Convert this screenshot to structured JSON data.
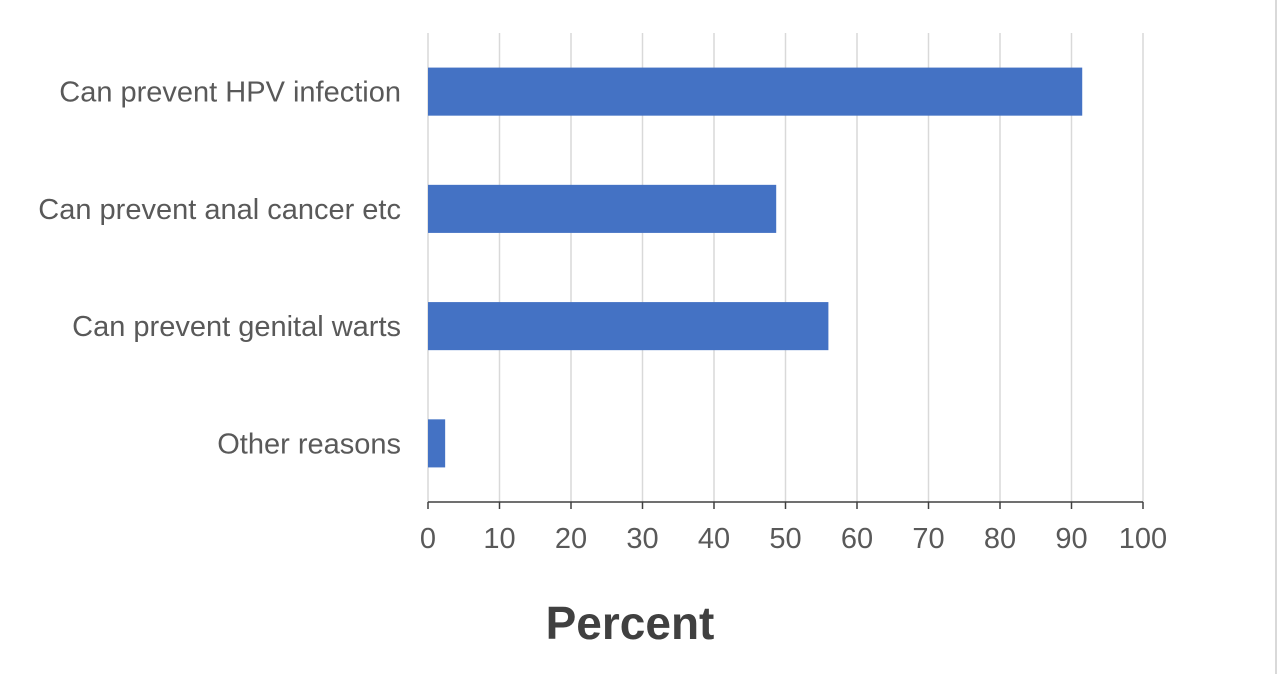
{
  "chart_data": {
    "type": "bar",
    "orientation": "horizontal",
    "categories": [
      "Can prevent HPV infection",
      "Can prevent anal cancer etc",
      "Can prevent genital warts",
      "Other reasons"
    ],
    "values": [
      91.5,
      48.7,
      56.0,
      2.4
    ],
    "xlabel": "Percent",
    "ylabel": "",
    "title": "",
    "xlim": [
      0,
      100
    ],
    "xticks": [
      "0",
      "10",
      "20",
      "30",
      "40",
      "50",
      "60",
      "70",
      "80",
      "90",
      "100"
    ],
    "grid": "vertical",
    "legend": "none",
    "bar_color": "#4472C4"
  }
}
